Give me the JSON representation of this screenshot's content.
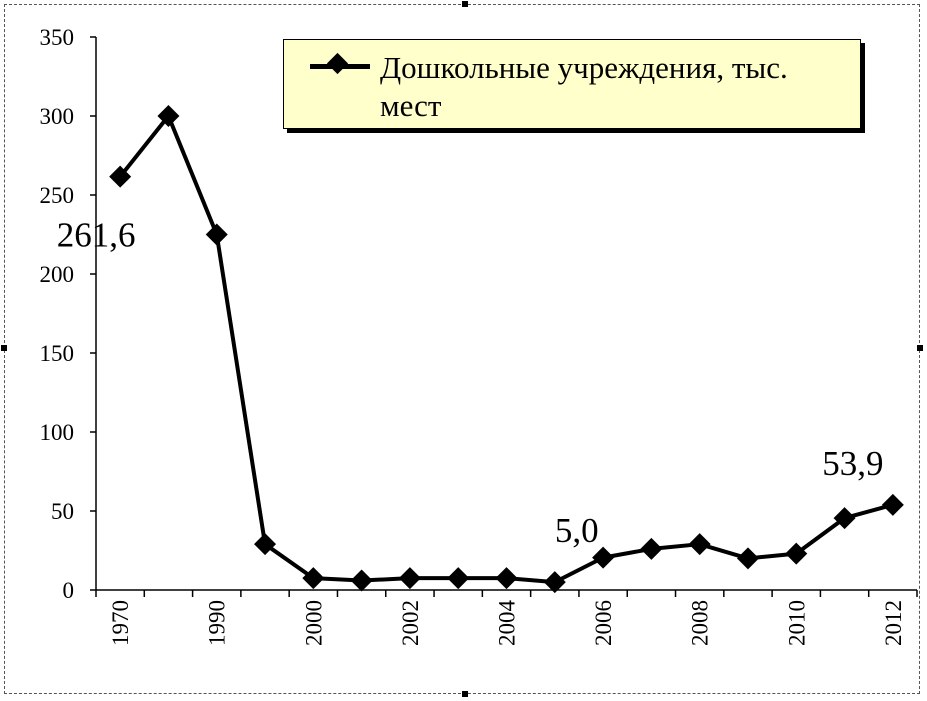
{
  "chart_data": {
    "type": "line",
    "legend_position": "top-right",
    "series": [
      {
        "name": "Дошкольные учреждения, тыс. мест",
        "values": [
          261.6,
          300,
          225,
          29,
          7.5,
          6,
          7.5,
          7.5,
          7.5,
          5.0,
          20.5,
          26,
          29,
          20,
          23,
          45.5,
          53.9
        ],
        "marker": "diamond",
        "color": "#000000"
      }
    ],
    "x_categories": [
      "1970",
      "",
      "1990",
      "",
      "2000",
      "",
      "2002",
      "",
      "2004",
      "",
      "2006",
      "",
      "2008",
      "",
      "2010",
      "",
      "2012"
    ],
    "x_tick_labels": [
      "1970",
      "1990",
      "2000",
      "2002",
      "2004",
      "2006",
      "2008",
      "2010",
      "2012"
    ],
    "y_ticks": [
      "0",
      "50",
      "100",
      "150",
      "200",
      "250",
      "300",
      "350"
    ],
    "ylim": [
      0,
      350
    ],
    "data_labels": [
      {
        "index": 0,
        "text": "261,6"
      },
      {
        "index": 9,
        "text": "5,0"
      },
      {
        "index": 16,
        "text": "53,9"
      }
    ],
    "grid": false,
    "title": "",
    "xlabel": "",
    "ylabel": ""
  }
}
